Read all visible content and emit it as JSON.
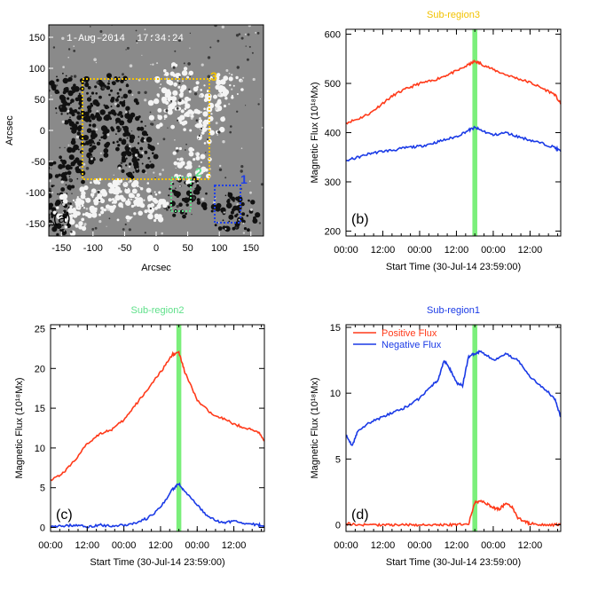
{
  "magnetogram": {
    "timestamp": "1-Aug-2014  17:34:24",
    "panel_label": "(a)",
    "xlabel": "Arcsec",
    "ylabel": "Arcsec",
    "xticks": [
      "-150",
      "-100",
      "-50",
      "0",
      "50",
      "100",
      "150"
    ],
    "yticks": [
      "150",
      "100",
      "50",
      "0",
      "-50",
      "-100",
      "-150"
    ],
    "boxes": [
      {
        "label": "3",
        "color": "#f2c200"
      },
      {
        "label": "2",
        "color": "#5fe08a"
      },
      {
        "label": "1",
        "color": "#1f3fe6"
      }
    ]
  },
  "chart_data": [
    {
      "type": "line",
      "title": "Sub-region3",
      "title_color": "#f2c200",
      "panel_label": "(b)",
      "xlabel": "Start Time (30-Jul-14 23:59:00)",
      "ylabel": "Magnetic Flux (10¹⁸Mx)",
      "xticks": [
        "00:00",
        "12:00",
        "00:00",
        "12:00",
        "00:00",
        "12:00"
      ],
      "xtick_hours": [
        0,
        12,
        24,
        36,
        48,
        60
      ],
      "xlim_hours": [
        0,
        70
      ],
      "ylim": [
        190,
        610
      ],
      "yticks": [
        "200",
        "300",
        "400",
        "500",
        "600"
      ],
      "ytick_values": [
        200,
        300,
        400,
        500,
        600
      ],
      "highlight_hours": [
        41.2,
        42.8
      ],
      "series": [
        {
          "color": "#ff3a1a",
          "x": [
            0,
            4,
            8,
            12,
            16,
            20,
            24,
            28,
            32,
            36,
            40,
            42,
            44,
            48,
            52,
            56,
            60,
            64,
            68,
            70
          ],
          "y": [
            420,
            428,
            440,
            460,
            478,
            490,
            500,
            505,
            515,
            525,
            538,
            545,
            540,
            528,
            518,
            510,
            502,
            490,
            478,
            458
          ]
        },
        {
          "color": "#1a3ae6",
          "x": [
            0,
            4,
            8,
            12,
            16,
            20,
            24,
            28,
            32,
            36,
            40,
            42,
            44,
            48,
            52,
            56,
            60,
            64,
            68,
            70
          ],
          "y": [
            343,
            350,
            358,
            362,
            365,
            370,
            372,
            378,
            385,
            392,
            405,
            410,
            405,
            395,
            400,
            392,
            385,
            378,
            370,
            362
          ]
        }
      ]
    },
    {
      "type": "line",
      "title": "Sub-region2",
      "title_color": "#5fe08a",
      "panel_label": "(c)",
      "xlabel": "Start Time (30-Jul-14 23:59:00)",
      "ylabel": "Magnetic Flux (10¹⁸Mx)",
      "xticks": [
        "00:00",
        "12:00",
        "00:00",
        "12:00",
        "00:00",
        "12:00"
      ],
      "xtick_hours": [
        0,
        12,
        24,
        36,
        48,
        60
      ],
      "xlim_hours": [
        0,
        70
      ],
      "ylim": [
        -0.5,
        25.5
      ],
      "yticks": [
        "0",
        "5",
        "10",
        "15",
        "20",
        "25"
      ],
      "ytick_values": [
        0,
        5,
        10,
        15,
        20,
        25
      ],
      "highlight_hours": [
        41.2,
        42.8
      ],
      "series": [
        {
          "color": "#ff3a1a",
          "x": [
            0,
            4,
            8,
            12,
            16,
            20,
            24,
            28,
            32,
            36,
            40,
            42,
            44,
            48,
            52,
            56,
            60,
            64,
            68,
            70
          ],
          "y": [
            6.0,
            6.8,
            8.5,
            10.5,
            11.8,
            12.3,
            13.5,
            15.5,
            17.5,
            19.5,
            21.8,
            22.0,
            19.5,
            16.0,
            14.5,
            13.8,
            13.0,
            12.5,
            12.0,
            11.0
          ]
        },
        {
          "color": "#1a3ae6",
          "x": [
            0,
            4,
            8,
            12,
            16,
            20,
            24,
            28,
            32,
            36,
            40,
            42,
            44,
            48,
            52,
            56,
            60,
            64,
            68,
            70
          ],
          "y": [
            0.0,
            0.2,
            0.3,
            0.1,
            0.3,
            0.2,
            0.3,
            0.6,
            1.2,
            2.5,
            4.8,
            5.5,
            4.5,
            2.8,
            1.2,
            0.6,
            0.8,
            0.5,
            0.3,
            0.2
          ]
        }
      ]
    },
    {
      "type": "line",
      "title": "Sub-region1",
      "title_color": "#1a3ae6",
      "panel_label": "(d)",
      "xlabel": "Start Time (30-Jul-14 23:59:00)",
      "ylabel": "Magnetic Flux (10¹⁸Mx)",
      "xticks": [
        "00:00",
        "12:00",
        "00:00",
        "12:00",
        "00:00",
        "12:00"
      ],
      "xtick_hours": [
        0,
        12,
        24,
        36,
        48,
        60
      ],
      "xlim_hours": [
        0,
        70
      ],
      "ylim": [
        -0.5,
        15.2
      ],
      "yticks": [
        "0",
        "5",
        "10",
        "15"
      ],
      "ytick_values": [
        0,
        5,
        10,
        15
      ],
      "highlight_hours": [
        41.2,
        42.8
      ],
      "legend_position": "top-left",
      "series": [
        {
          "name": "Positive Flux",
          "color": "#ff3a1a",
          "x": [
            0,
            4,
            8,
            12,
            16,
            20,
            24,
            28,
            32,
            36,
            40,
            42,
            44,
            46,
            48,
            50,
            52,
            54,
            56,
            58,
            60,
            64,
            68,
            70
          ],
          "y": [
            0.1,
            0.0,
            0.0,
            0.0,
            0.0,
            0.0,
            0.0,
            0.0,
            0.0,
            0.0,
            0.1,
            1.7,
            1.8,
            1.6,
            1.3,
            1.2,
            1.6,
            1.4,
            0.5,
            0.3,
            0.1,
            0.0,
            0.0,
            0.0
          ]
        },
        {
          "name": "Negative Flux",
          "color": "#1a3ae6",
          "x": [
            0,
            2,
            4,
            8,
            12,
            16,
            20,
            24,
            28,
            30,
            32,
            34,
            36,
            38,
            40,
            42,
            44,
            48,
            52,
            56,
            60,
            64,
            68,
            70
          ],
          "y": [
            6.8,
            6.0,
            7.2,
            7.8,
            8.2,
            8.6,
            9.0,
            9.6,
            10.6,
            11.0,
            12.5,
            11.8,
            10.8,
            10.6,
            12.8,
            13.0,
            13.2,
            12.5,
            13.0,
            12.5,
            11.2,
            10.5,
            9.6,
            8.2
          ]
        }
      ]
    }
  ]
}
